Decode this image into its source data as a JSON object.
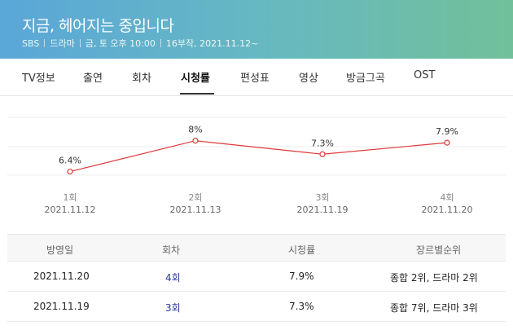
{
  "header": {
    "title": "지금, 헤어지는 중입니다",
    "meta": [
      "SBS",
      "드라마",
      "금, 토 오후 10:00",
      "16부작, 2021.11.12~"
    ]
  },
  "tabs": [
    {
      "label": "TV정보",
      "active": false
    },
    {
      "label": "출연",
      "active": false
    },
    {
      "label": "회차",
      "active": false
    },
    {
      "label": "시청률",
      "active": true
    },
    {
      "label": "편성표",
      "active": false
    },
    {
      "label": "영상",
      "active": false
    },
    {
      "label": "방금그곡",
      "active": false
    },
    {
      "label": "OST",
      "active": false
    }
  ],
  "chart_data": {
    "type": "line",
    "categories": [
      "1회",
      "2회",
      "3회",
      "4회"
    ],
    "dates": [
      "2021.11.12",
      "2021.11.13",
      "2021.11.19",
      "2021.11.20"
    ],
    "values": [
      6.4,
      8,
      7.3,
      7.9
    ],
    "value_labels": [
      "6.4%",
      "8%",
      "7.3%",
      "7.9%"
    ],
    "line_color": "#e0383a",
    "grid": true
  },
  "table": {
    "headers": [
      "방영일",
      "회차",
      "시청률",
      "장르별순위"
    ],
    "rows": [
      {
        "date": "2021.11.20",
        "episode": "4회",
        "rating": "7.9%",
        "rank": "종합 2위, 드라마 2위"
      },
      {
        "date": "2021.11.19",
        "episode": "3회",
        "rating": "7.3%",
        "rank": "종합 7위, 드라마 3위"
      }
    ]
  },
  "colors": {
    "accent_link": "#2b3a9e",
    "header_start": "#5aa7d8",
    "header_end": "#72c09a"
  }
}
